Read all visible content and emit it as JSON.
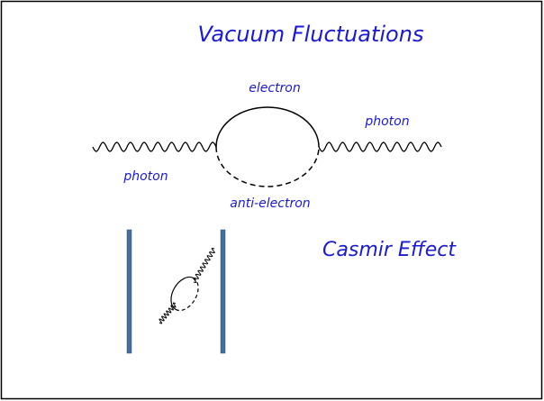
{
  "title": "Vacuum Fluctuations",
  "diagram": {
    "electron": "electron",
    "photon_right": "photon",
    "photon_left": "photon",
    "anti_electron": "anti-electron"
  },
  "casimir": {
    "label": "Casmir Effect"
  }
}
